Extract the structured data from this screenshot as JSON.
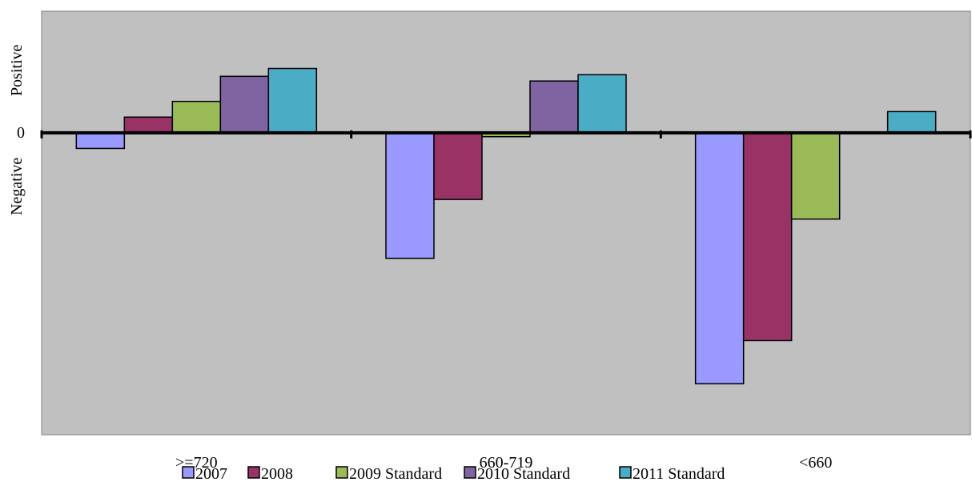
{
  "chart_data": {
    "type": "bar",
    "title": "",
    "xlabel": "",
    "ylabel": "",
    "y_zero_label": "0",
    "y_positive_label": "Positive",
    "y_negative_label": "Negative",
    "categories": [
      ">=720",
      "660-719",
      "<660"
    ],
    "series": [
      {
        "name": "2007",
        "color": "#9999FF",
        "values": [
          -2,
          -16,
          -32
        ]
      },
      {
        "name": "2008",
        "color": "#993366",
        "values": [
          2,
          -8.5,
          -26.5
        ]
      },
      {
        "name": "2009 Standard",
        "color": "#9BBB59",
        "values": [
          4,
          -0.5,
          -11
        ]
      },
      {
        "name": "2010 Standard",
        "color": "#8064A2",
        "values": [
          7.2,
          6.6,
          null
        ]
      },
      {
        "name": "2011 Standard",
        "color": "#4BACC6",
        "values": [
          8.2,
          7.4,
          2.7
        ]
      }
    ],
    "ylim": [
      -38.5,
      15.5
    ],
    "grid": false,
    "plot_background": "#C0C0C0",
    "legend": "bottom",
    "show_tick_values": false
  }
}
